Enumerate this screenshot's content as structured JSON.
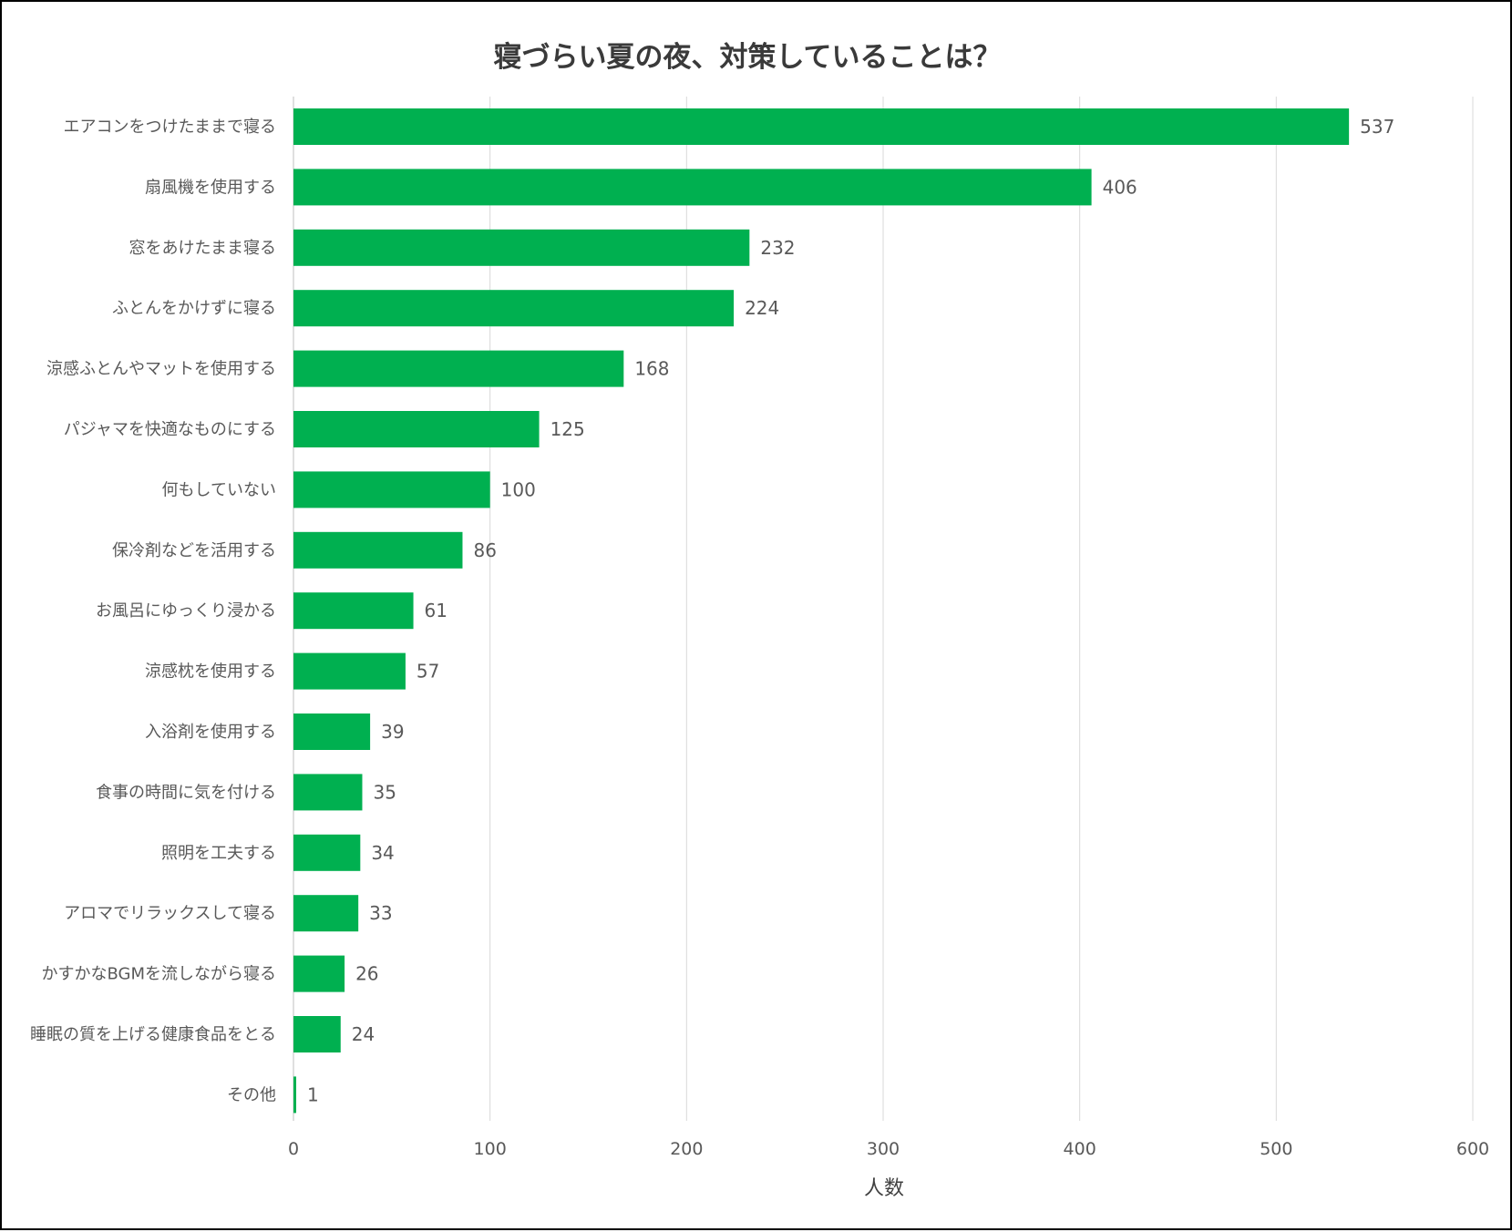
{
  "chart_data": {
    "type": "bar",
    "orientation": "horizontal",
    "title": "寝づらい夏の夜、対策していることは？",
    "xlabel": "人数",
    "ylabel": "",
    "xlim": [
      0,
      600
    ],
    "xticks": [
      0,
      100,
      200,
      300,
      400,
      500,
      600
    ],
    "grid": true,
    "legend": "none",
    "bar_color": "#00b050",
    "data_labels": true,
    "categories": [
      "エアコンをつけたままで寝る",
      "扇風機を使用する",
      "窓をあけたまま寝る",
      "ふとんをかけずに寝る",
      "涼感ふとんやマットを使用する",
      "パジャマを快適なものにする",
      "何もしていない",
      "保冷剤などを活用する",
      "お風呂にゆっくり浸かる",
      "涼感枕を使用する",
      "入浴剤を使用する",
      "食事の時間に気を付ける",
      "照明を工夫する",
      "アロマでリラックスして寝る",
      "かすかなBGMを流しながら寝る",
      "睡眠の質を上げる健康食品をとる",
      "その他"
    ],
    "values": [
      537,
      406,
      232,
      224,
      168,
      125,
      100,
      86,
      61,
      57,
      39,
      35,
      34,
      33,
      26,
      24,
      1
    ]
  }
}
